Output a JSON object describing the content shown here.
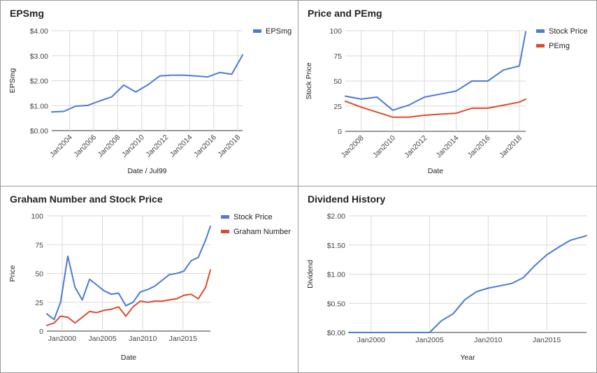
{
  "chart_data": [
    {
      "type": "line",
      "title": "EPSmg",
      "xlabel": "Date / Jul99",
      "ylabel": "EPSmg",
      "x_range": [
        2002.5,
        2018.4
      ],
      "ylim": [
        0,
        4
      ],
      "y_ticks": [
        0,
        1,
        2,
        3,
        4
      ],
      "y_tick_labels": [
        "$0.00",
        "$1.00",
        "$2.00",
        "$3.00",
        "$4.00"
      ],
      "x_ticks": [
        2004,
        2006,
        2008,
        2010,
        2012,
        2014,
        2016,
        2018
      ],
      "x_tick_labels": [
        "Jan2004",
        "Jan2006",
        "Jan2008",
        "Jan2010",
        "Jan2012",
        "Jan2014",
        "Jan2016",
        "Jan2018"
      ],
      "x_tick_rotate": true,
      "grid": true,
      "legend": "top-right",
      "series": [
        {
          "name": "EPSmg",
          "color": "#4a7bd5",
          "x": [
            2002.5,
            2003.5,
            2004.5,
            2005.5,
            2006.5,
            2007.5,
            2008.5,
            2009.5,
            2010.5,
            2011.5,
            2012.5,
            2013.5,
            2014.5,
            2015.5,
            2016.5,
            2017.5,
            2018.4
          ],
          "y": [
            0.75,
            0.77,
            0.98,
            1.01,
            1.19,
            1.35,
            1.82,
            1.55,
            1.83,
            2.19,
            2.22,
            2.22,
            2.19,
            2.15,
            2.33,
            2.26,
            3.03
          ]
        }
      ]
    },
    {
      "type": "line",
      "title": "Price and PEmg",
      "xlabel": "Date",
      "ylabel": "Stock Price",
      "x_range": [
        2007.0,
        2018.4
      ],
      "ylim": [
        0,
        100
      ],
      "y_ticks": [
        0,
        25,
        50,
        75,
        100
      ],
      "y_tick_labels": [
        "0",
        "25",
        "50",
        "75",
        "100"
      ],
      "x_ticks": [
        2008,
        2010,
        2012,
        2014,
        2016,
        2018
      ],
      "x_tick_labels": [
        "Jan2008",
        "Jan2010",
        "Jan2012",
        "Jan2014",
        "Jan2016",
        "Jan2018"
      ],
      "x_tick_rotate": true,
      "grid": true,
      "legend": "top-right",
      "series": [
        {
          "name": "Stock Price",
          "color": "#4a7bd5",
          "x": [
            2007.0,
            2008.0,
            2009.0,
            2010.0,
            2011.0,
            2012.0,
            2013.0,
            2014.0,
            2015.0,
            2016.0,
            2017.0,
            2018.0,
            2018.4
          ],
          "y": [
            35,
            32,
            34,
            21,
            26,
            34,
            37,
            40,
            50,
            50,
            61,
            65,
            99
          ]
        },
        {
          "name": "PEmg",
          "color": "#dd4b2d",
          "x": [
            2007.0,
            2008.0,
            2009.0,
            2010.0,
            2011.0,
            2012.0,
            2013.0,
            2014.0,
            2015.0,
            2016.0,
            2017.0,
            2018.0,
            2018.4
          ],
          "y": [
            30,
            24,
            19,
            14,
            14,
            16,
            17,
            18,
            23,
            23,
            26,
            29,
            32
          ]
        }
      ]
    },
    {
      "type": "line",
      "title": "Graham Number and Stock Price",
      "xlabel": "Date",
      "ylabel": "Price",
      "x_range": [
        1998.1,
        2018.4
      ],
      "ylim": [
        0,
        100
      ],
      "y_ticks": [
        0,
        25,
        50,
        75,
        100
      ],
      "y_tick_labels": [
        "0",
        "25",
        "50",
        "75",
        "100"
      ],
      "x_ticks": [
        2000,
        2005,
        2010,
        2015
      ],
      "x_tick_labels": [
        "Jan2000",
        "Jan2005",
        "Jan2010",
        "Jan2015"
      ],
      "x_tick_rotate": false,
      "grid": true,
      "legend": "top-right",
      "series": [
        {
          "name": "Stock Price",
          "color": "#4a7bd5",
          "x": [
            1998.1,
            1999.0,
            1999.8,
            2000.7,
            2001.6,
            2002.5,
            2003.4,
            2004.3,
            2005.2,
            2006.1,
            2007.0,
            2007.9,
            2008.8,
            2009.7,
            2010.6,
            2011.5,
            2012.4,
            2013.3,
            2014.2,
            2015.1,
            2016.0,
            2016.9,
            2017.8,
            2018.4
          ],
          "y": [
            15,
            10,
            25,
            65,
            38,
            27,
            45,
            40,
            35,
            32,
            33,
            22,
            25,
            34,
            36,
            39,
            44,
            49,
            50,
            52,
            61,
            64,
            79,
            91
          ]
        },
        {
          "name": "Graham Number",
          "color": "#dd4b2d",
          "x": [
            1998.1,
            1999.0,
            1999.8,
            2000.7,
            2001.6,
            2002.5,
            2003.4,
            2004.3,
            2005.2,
            2006.1,
            2007.0,
            2007.9,
            2008.8,
            2009.7,
            2010.6,
            2011.5,
            2012.4,
            2013.3,
            2014.2,
            2015.1,
            2016.0,
            2016.9,
            2017.8,
            2018.4
          ],
          "y": [
            5,
            7,
            13,
            12,
            7,
            12,
            17,
            16,
            18,
            19,
            21,
            13,
            21,
            26,
            25,
            26,
            26,
            27,
            28,
            31,
            32,
            28,
            38,
            53
          ]
        }
      ]
    },
    {
      "type": "line",
      "title": "Dividend History",
      "xlabel": "Year",
      "ylabel": "Dividend",
      "x_range": [
        1998.1,
        2018.4
      ],
      "ylim": [
        0,
        2
      ],
      "y_ticks": [
        0,
        0.5,
        1,
        1.5,
        2
      ],
      "y_tick_labels": [
        "$0.00",
        "$0.50",
        "$1.00",
        "$1.50",
        "$2.00"
      ],
      "x_ticks": [
        2000,
        2005,
        2010,
        2015
      ],
      "x_tick_labels": [
        "Jan2000",
        "Jan2005",
        "Jan2010",
        "Jan2015"
      ],
      "x_tick_rotate": false,
      "grid": true,
      "legend": "none",
      "series": [
        {
          "name": "",
          "color": "#4a7bd5",
          "x": [
            1998.1,
            1999.0,
            2000.0,
            2001.0,
            2002.0,
            2003.0,
            2004.0,
            2005.0,
            2006.0,
            2007.0,
            2008.0,
            2009.0,
            2010.0,
            2011.0,
            2012.0,
            2013.0,
            2014.0,
            2015.0,
            2016.0,
            2017.0,
            2018.4
          ],
          "y": [
            0,
            0,
            0,
            0,
            0,
            0,
            0,
            0,
            0.2,
            0.32,
            0.56,
            0.7,
            0.76,
            0.8,
            0.84,
            0.94,
            1.15,
            1.33,
            1.46,
            1.58,
            1.66
          ]
        }
      ]
    }
  ]
}
